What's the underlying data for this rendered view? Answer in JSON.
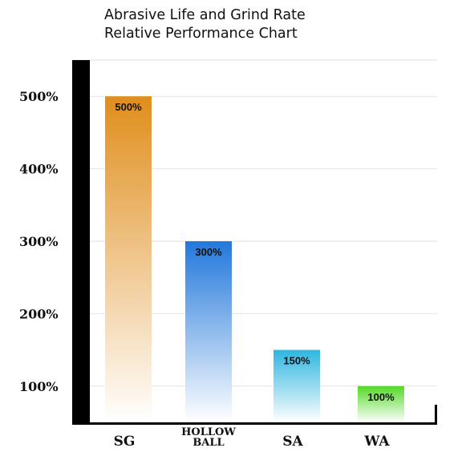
{
  "chart_data": {
    "type": "bar",
    "title": [
      "Abrasive Life and Grind Rate",
      "Relative Performance Chart"
    ],
    "xlabel": "",
    "ylabel": "",
    "categories": [
      "SG",
      "HOLLOW BALL",
      "SA",
      "WA"
    ],
    "category_lines": [
      [
        "SG"
      ],
      [
        "HOLLOW",
        "BALL"
      ],
      [
        "SA"
      ],
      [
        "WA"
      ]
    ],
    "values": [
      500,
      300,
      150,
      100
    ],
    "value_labels": [
      "500%",
      "300%",
      "150%",
      "100%"
    ],
    "yticks": [
      100,
      200,
      300,
      400,
      500
    ],
    "ytick_labels": [
      "100%",
      "200%",
      "300%",
      "400%",
      "500%"
    ],
    "ylim": [
      50,
      550
    ],
    "grid": true,
    "legend": "none",
    "colors": {
      "top": [
        "#e08e1c",
        "#2278dc",
        "#2fb6e0",
        "#55d828"
      ],
      "fade": "#ffffff",
      "axis": "#000000",
      "grid": "#e2e2e2"
    }
  }
}
